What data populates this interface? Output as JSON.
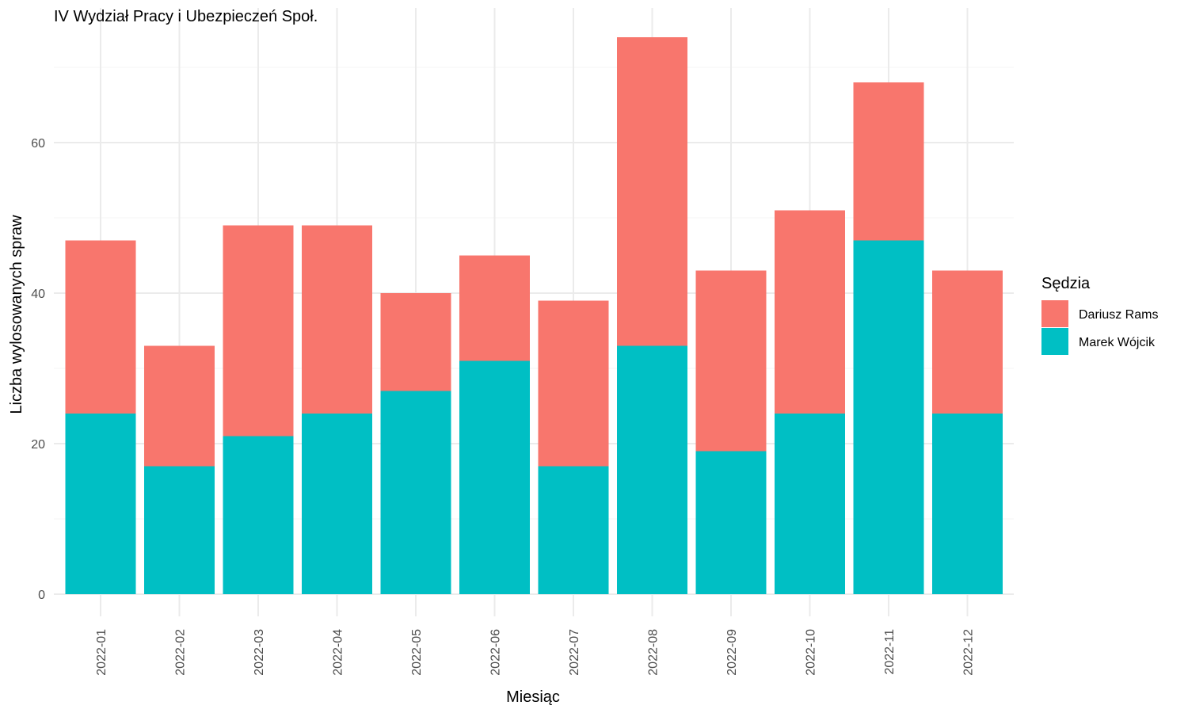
{
  "chart_data": {
    "type": "bar",
    "stacked": true,
    "title": "IV Wydział Pracy i Ubezpieczeń Społ.",
    "xlabel": "Miesiąc",
    "ylabel": "Liczba wylosowanych spraw",
    "ylim": [
      0,
      75
    ],
    "yticks": [
      0,
      20,
      40,
      60
    ],
    "grid": true,
    "legend_position": "right",
    "legend_title": "Sędzia",
    "categories": [
      "2022-01",
      "2022-02",
      "2022-03",
      "2022-04",
      "2022-05",
      "2022-06",
      "2022-07",
      "2022-08",
      "2022-09",
      "2022-10",
      "2022-11",
      "2022-12"
    ],
    "series": [
      {
        "name": "Marek Wójcik",
        "color": "#00BFC4",
        "values": [
          24,
          17,
          21,
          24,
          27,
          31,
          17,
          33,
          19,
          24,
          47,
          24
        ]
      },
      {
        "name": "Dariusz Rams",
        "color": "#F8766D",
        "values": [
          23,
          16,
          28,
          25,
          13,
          14,
          22,
          41,
          24,
          27,
          21,
          19
        ]
      }
    ],
    "legend_order": [
      "Dariusz Rams",
      "Marek Wójcik"
    ]
  }
}
